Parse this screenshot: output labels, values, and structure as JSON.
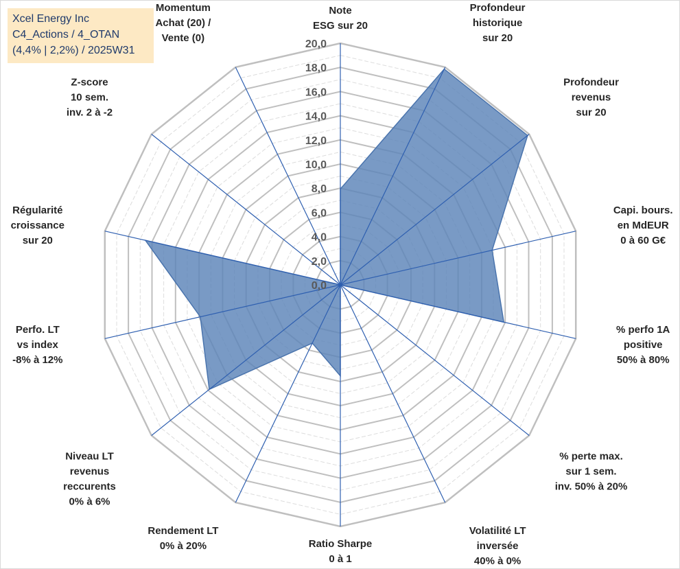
{
  "title_lines": [
    "Xcel Energy Inc",
    "C4_Actions / 4_OTAN",
    "(4,4% | 2,2%) / 2025W31"
  ],
  "colors": {
    "fill": "#5b84b8",
    "fill_opacity": 0.82,
    "series_stroke": "#4a74ad",
    "spoke": "#2e5fb0",
    "grid_major": "#bfbfbf",
    "grid_minor": "#dcdcdc",
    "title_bg": "#fde9c4",
    "title_text": "#1f3a6b"
  },
  "chart_data": {
    "type": "radar",
    "title": "Xcel Energy Inc",
    "rmin": 0,
    "rmax": 20,
    "major_step": 2,
    "minor_step": 1,
    "tick_labels": [
      "0,0",
      "2,0",
      "4,0",
      "6,0",
      "8,0",
      "10,0",
      "12,0",
      "14,0",
      "16,0",
      "18,0",
      "20,0"
    ],
    "categories": [
      [
        "Note",
        "ESG sur 20"
      ],
      [
        "Profondeur",
        "historique",
        "sur 20"
      ],
      [
        "Profondeur",
        "revenus",
        "sur 20"
      ],
      [
        "Capi. bours.",
        "en MdEUR",
        "0 à 60 G€"
      ],
      [
        "% perfo 1A",
        "positive",
        "50% à 80%"
      ],
      [
        "% perte max.",
        "sur 1 sem.",
        "inv. 50% à 20%"
      ],
      [
        "Volatilité LT",
        "inversée",
        "40% à 0%"
      ],
      [
        "Ratio Sharpe",
        "0 à 1"
      ],
      [
        "Rendement LT",
        "0% à 20%"
      ],
      [
        "Niveau LT",
        "revenus",
        "reccurents",
        "0% à 6%"
      ],
      [
        "Perfo. LT",
        "vs index",
        "-8% à 12%"
      ],
      [
        "Régularité",
        "croissance",
        "sur 20"
      ],
      [
        "Z-score",
        "10 sem.",
        "inv. 2 à -2"
      ],
      [
        "Momentum",
        "Achat (20) /",
        "Vente (0)"
      ]
    ],
    "values": [
      8.0,
      20.0,
      20.0,
      13.0,
      14.0,
      0.0,
      0.0,
      7.6,
      5.4,
      14.0,
      12.0,
      16.7,
      0.0,
      0.0
    ],
    "grid": true
  }
}
